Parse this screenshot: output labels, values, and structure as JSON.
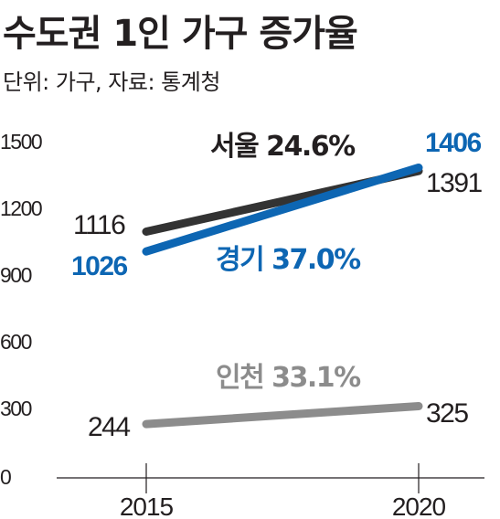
{
  "header": {
    "title": "수도권 1인 가구 증가율",
    "subtitle": "단위: 가구, 자료: 통계청"
  },
  "chart_data": {
    "type": "line",
    "title": "수도권 1인 가구 증가율",
    "subtitle": "단위: 가구, 자료: 통계청",
    "x": [
      "2015",
      "2020"
    ],
    "y_ticks": [
      "1500",
      "1200",
      "900",
      "600",
      "300",
      "0"
    ],
    "ylim": [
      0,
      1500
    ],
    "grid": false,
    "series": [
      {
        "name": "서울 24.6%",
        "values": [
          1116,
          1391
        ],
        "start_label": "1116",
        "end_label": "1391",
        "color": "#333333",
        "label_color": "#231f20"
      },
      {
        "name": "경기 37.0%",
        "values": [
          1026,
          1406
        ],
        "start_label": "1026",
        "end_label": "1406",
        "color": "#0d66b3",
        "label_color": "#0d66b3"
      },
      {
        "name": "인천 33.1%",
        "values": [
          244,
          325
        ],
        "start_label": "244",
        "end_label": "325",
        "color": "#8c8c8c",
        "label_color": "#8c8c8c"
      }
    ]
  }
}
